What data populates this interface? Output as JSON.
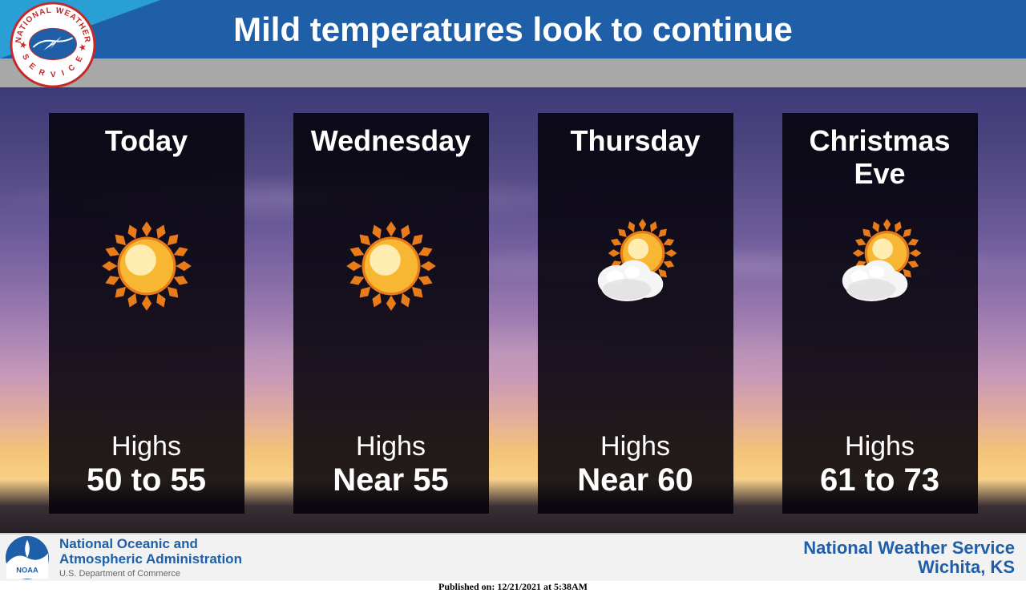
{
  "header": {
    "title": "Mild temperatures look to continue",
    "title_color": "#ffffff",
    "bar_color": "#1e5fa8",
    "corner_color": "#2a9fd6"
  },
  "gray_bar_color": "#a8a8a8",
  "background": {
    "type": "gradient-sky-sunset",
    "stops": [
      "#3d3a7a",
      "#6b5a9a",
      "#c898b8",
      "#f4c478",
      "#252025"
    ]
  },
  "forecast": {
    "highs_label": "Highs",
    "card_bg": "rgba(5,2,10,0.88)",
    "text_color": "#ffffff",
    "sun_colors": {
      "outer": "#e87b1a",
      "mid": "#f7b733",
      "core": "#fff6c8"
    },
    "cloud_color": "#f5f5f5",
    "days": [
      {
        "label": "Today",
        "icon": "sun",
        "value": "50 to 55"
      },
      {
        "label": "Wednesday",
        "icon": "sun",
        "value": "Near 55"
      },
      {
        "label": "Thursday",
        "icon": "partly-cloudy",
        "value": "Near 60"
      },
      {
        "label": "Christmas Eve",
        "icon": "partly-cloudy",
        "value": "61 to 73"
      }
    ]
  },
  "footer": {
    "noaa_line1": "National Oceanic and",
    "noaa_line2": "Atmospheric Administration",
    "noaa_sub": "U.S. Department of Commerce",
    "nws_line1": "National Weather Service",
    "nws_line2": "Wichita, KS",
    "brand_color": "#1e5fa8"
  },
  "published": "Published on: 12/21/2021 at 5:38AM"
}
